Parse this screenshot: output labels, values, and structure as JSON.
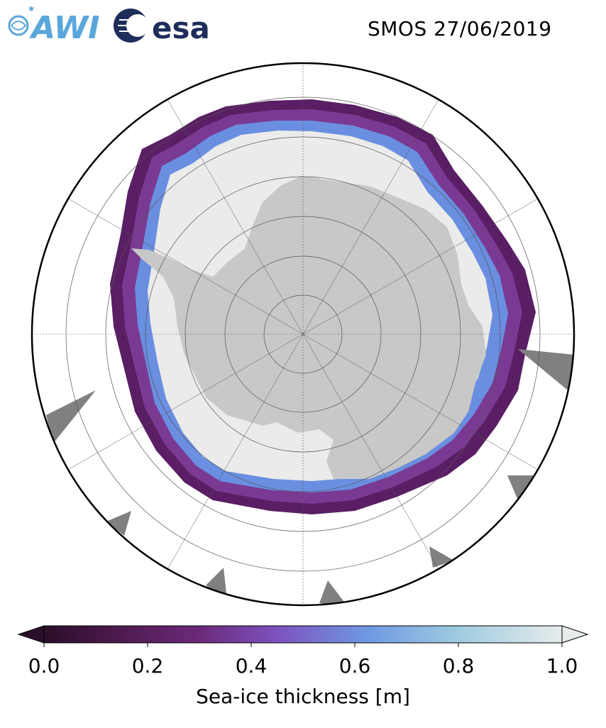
{
  "header": {
    "title": "SMOS 27/06/2019",
    "logos": [
      {
        "name": "awi-logo",
        "text": "AWI",
        "color": "#5aa7dc"
      },
      {
        "name": "esa-logo",
        "text": "esa",
        "color": "#1e2d5a"
      }
    ]
  },
  "map": {
    "projection": "south-polar-stereographic",
    "colors": {
      "ocean": "#ffffff",
      "land": "#c8c8c8",
      "thick_ice": "#ebebeb",
      "ice_edge": "#5a1e64",
      "ice_mid": "#7a3a94",
      "ice_blue": "#6a8fe0",
      "icebergs": "#808080",
      "gridlines": "#555555",
      "frame": "#000000"
    }
  },
  "colorbar": {
    "label": "Sea-ice thickness [m]",
    "range": [
      0.0,
      1.0
    ],
    "ticks": [
      "0.0",
      "0.2",
      "0.4",
      "0.6",
      "0.8",
      "1.0"
    ],
    "extend": "both",
    "stops": [
      "#2a0f2a",
      "#4f1a50",
      "#6b2a7a",
      "#7d52bf",
      "#6e97e2",
      "#9fcbe0",
      "#e6ecec"
    ]
  }
}
